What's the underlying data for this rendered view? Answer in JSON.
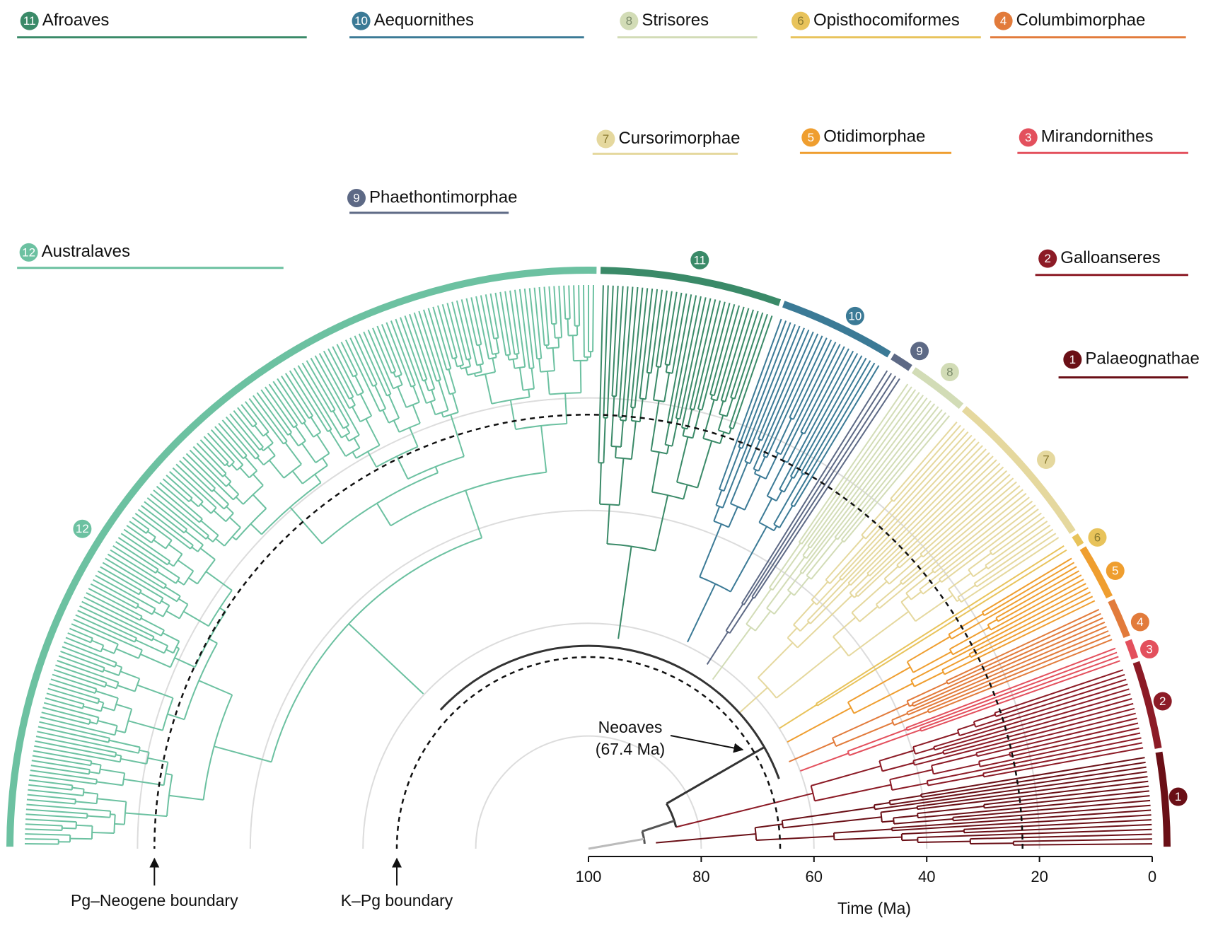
{
  "clades": [
    {
      "number": "1",
      "name": "Palaeognathae"
    },
    {
      "number": "2",
      "name": "Galloanseres"
    },
    {
      "number": "3",
      "name": "Mirandornithes"
    },
    {
      "number": "4",
      "name": "Columbimorphae"
    },
    {
      "number": "5",
      "name": "Otidimorphae"
    },
    {
      "number": "6",
      "name": "Opisthocomiformes"
    },
    {
      "number": "7",
      "name": "Cursorimorphae"
    },
    {
      "number": "8",
      "name": "Strisores"
    },
    {
      "number": "9",
      "name": "Phaethontimorphae"
    },
    {
      "number": "10",
      "name": "Aequornithes"
    },
    {
      "number": "11",
      "name": "Afroaves"
    },
    {
      "number": "12",
      "name": "Australaves"
    }
  ],
  "annotations": {
    "neoaves": [
      "Neoaves",
      "(67.4 Ma)"
    ],
    "pg_neogene": "Pg–Neogene boundary",
    "k_pg": "K–Pg boundary"
  },
  "axis": {
    "label": "Time (Ma)",
    "lim": [
      100,
      0
    ],
    "ticks": [
      100,
      80,
      60,
      40,
      20,
      0
    ]
  }
}
